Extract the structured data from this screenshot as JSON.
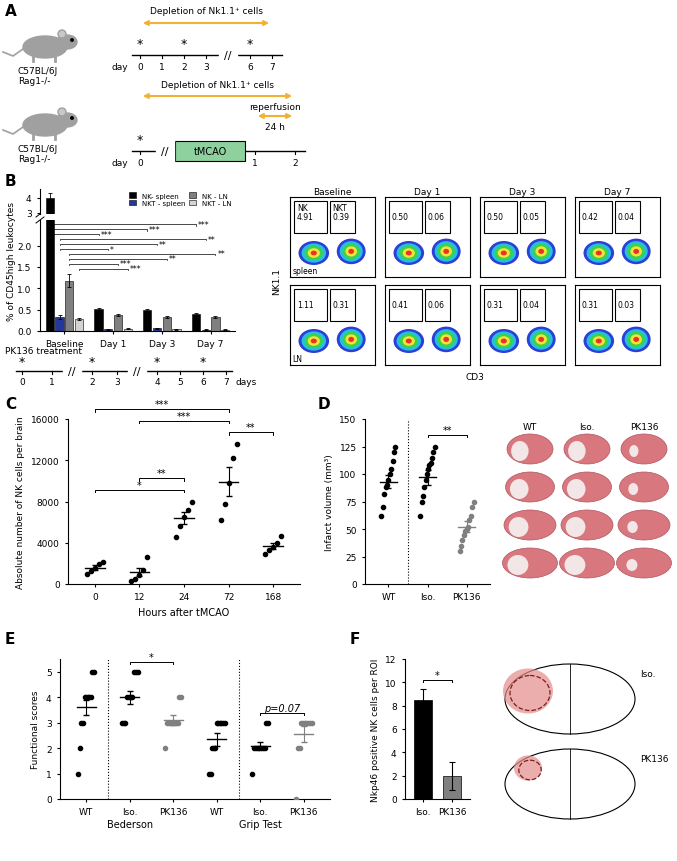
{
  "schemes": {
    "panel": "A",
    "timelines": [
      {
        "mouse": [
          "C57BL/6J",
          "Rag1-/-"
        ],
        "arrow_label": "Depletion of Nk1.1⁺ cells",
        "axis_label": "day",
        "ticks": [
          "0",
          "1",
          "2",
          "3",
          "//",
          "6",
          "7"
        ],
        "stars_at": [
          "0",
          "2",
          "6"
        ]
      },
      {
        "mouse": [
          "C57BL/6J",
          "Rag1-/-"
        ],
        "arrow_label": "Depletion of Nk1.1⁺ cells",
        "axis_label": "day",
        "ticks": [
          "0",
          "//",
          "1",
          "2"
        ],
        "stars_at": [
          "0"
        ],
        "box": "tMCAO",
        "reperfusion": "reperfusion",
        "duration": "24 h"
      }
    ]
  },
  "pk136_timeline": {
    "label": "PK136 treatment",
    "axis_label": "days",
    "ticks": [
      "0",
      "1",
      "//",
      "2",
      "3",
      "//",
      "4",
      "5",
      "6",
      "7"
    ],
    "stars_at": [
      "0",
      "2",
      "4",
      "6"
    ]
  },
  "flow_plots": {
    "x_label": "CD3",
    "y_label": "NK1.1",
    "gates": [
      "NK",
      "NKT"
    ],
    "columns": [
      "Baseline",
      "Day 1",
      "Day 3",
      "Day 7"
    ],
    "rows": [
      {
        "name": "spleen",
        "values": [
          [
            "4.91",
            "0.39"
          ],
          [
            "0.50",
            "0.06"
          ],
          [
            "0.50",
            "0.05"
          ],
          [
            "0.42",
            "0.04"
          ]
        ]
      },
      {
        "name": "LN",
        "values": [
          [
            "1.11",
            "0.31"
          ],
          [
            "0.41",
            "0.06"
          ],
          [
            "0.31",
            "0.04"
          ],
          [
            "0.31",
            "0.03"
          ]
        ]
      }
    ]
  },
  "brain_images": {
    "D": [
      "WT",
      "Iso.",
      "PK136"
    ],
    "F": [
      "Iso.",
      "PK136"
    ]
  },
  "chart_data": [
    {
      "panel": "B",
      "type": "bar",
      "ylabel": "% of CD45high leukocytes",
      "categories": [
        "Baseline",
        "Day 1",
        "Day 3",
        "Day 7"
      ],
      "series": [
        {
          "name": "NK- spleen",
          "color": "#000000",
          "values": [
            4.0,
            0.52,
            0.5,
            0.4
          ],
          "errors": [
            0.3,
            0.03,
            0.02,
            0.02
          ]
        },
        {
          "name": "NKT - spleen",
          "color": "#23389a",
          "values": [
            0.33,
            0.04,
            0.06,
            0.03
          ],
          "errors": [
            0.04,
            0.01,
            0.01,
            0.01
          ]
        },
        {
          "name": "NK - LN",
          "color": "#808080",
          "values": [
            1.18,
            0.37,
            0.32,
            0.33
          ],
          "errors": [
            0.15,
            0.03,
            0.02,
            0.02
          ]
        },
        {
          "name": "NKT - LN",
          "color": "#d3d3d3",
          "values": [
            0.28,
            0.05,
            0.04,
            0.03
          ],
          "errors": [
            0.03,
            0.01,
            0.01,
            0.01
          ]
        }
      ],
      "y_segments": [
        {
          "ylim": [
            0,
            2.6
          ],
          "yticks": [
            {
              "value": 0,
              "label": "0.0"
            },
            {
              "value": 0.5,
              "label": "0.5"
            },
            {
              "value": 1,
              "label": "1.0"
            },
            {
              "value": 1.5,
              "label": "1.5"
            },
            {
              "value": 2,
              "label": "2.0"
            }
          ]
        },
        {
          "ylim": [
            2.9,
            4.6
          ],
          "yticks": [
            3,
            4
          ]
        }
      ],
      "legend": "upper right",
      "significance": [
        {
          "series": "NKT - LN",
          "from": 0,
          "to": 1,
          "text": "***"
        },
        {
          "series": "NK - LN",
          "from": 0,
          "to": 1,
          "text": "***"
        },
        {
          "series": "NK - LN",
          "from": 0,
          "to": 2,
          "text": "**"
        },
        {
          "series": "NK - LN",
          "from": 0,
          "to": 3,
          "text": "**"
        },
        {
          "series": "NKT - spleen",
          "from": 0,
          "to": 1,
          "text": "*"
        },
        {
          "series": "NKT - spleen",
          "from": 0,
          "to": 2,
          "text": "**"
        },
        {
          "series": "NKT - spleen",
          "from": 0,
          "to": 3,
          "text": "**"
        },
        {
          "series": "NK- spleen",
          "from": 0,
          "to": 1,
          "text": "***"
        },
        {
          "series": "NK- spleen",
          "from": 0,
          "to": 2,
          "text": "***"
        },
        {
          "series": "NK- spleen",
          "from": 0,
          "to": 3,
          "text": "***"
        }
      ]
    },
    {
      "panel": "C",
      "type": "scatter",
      "ylabel": "Absolute number of NK cells per brain",
      "xlabel": "Hours after tMCAO",
      "categories": [
        "0",
        "12",
        "24",
        "72",
        "168"
      ],
      "color": "#000000",
      "points": [
        [
          1000,
          1300,
          1600,
          1900,
          2100
        ],
        [
          300,
          500,
          900,
          1400,
          2600
        ],
        [
          4600,
          5600,
          6500,
          7200,
          8000
        ],
        [
          6200,
          7800,
          9800,
          12200,
          13600
        ],
        [
          2900,
          3300,
          3600,
          4000,
          4700
        ]
      ],
      "means": [
        1600,
        1150,
        6400,
        9900,
        3700
      ],
      "errors": [
        200,
        420,
        600,
        1400,
        320
      ],
      "ylim": [
        0,
        16000
      ],
      "yticks": [
        0,
        4000,
        8000,
        12000,
        16000
      ],
      "significance": [
        {
          "from": 0,
          "to": 2,
          "text": "*"
        },
        {
          "from": 1,
          "to": 2,
          "text": "**"
        },
        {
          "from": 3,
          "to": 4,
          "text": "**"
        },
        {
          "from": 1,
          "to": 3,
          "text": "***"
        },
        {
          "from": 0,
          "to": 3,
          "text": "***"
        }
      ]
    },
    {
      "panel": "D",
      "type": "scatter",
      "ylabel": "Infarct volume (mm³)",
      "categories": [
        "WT",
        "Iso.",
        "PK136"
      ],
      "colors": [
        "#000000",
        "#000000",
        "#808080"
      ],
      "points": [
        [
          62,
          70,
          82,
          88,
          90,
          95,
          100,
          105,
          112,
          120,
          125
        ],
        [
          62,
          75,
          80,
          88,
          95,
          100,
          105,
          108,
          110,
          115,
          120,
          125
        ],
        [
          30,
          35,
          40,
          45,
          48,
          50,
          52,
          58,
          62,
          70,
          75
        ]
      ],
      "means": [
        93,
        97,
        52
      ],
      "errors": [
        6,
        7,
        5
      ],
      "ylim": [
        0,
        150
      ],
      "yticks": [
        0,
        25,
        50,
        75,
        100,
        125,
        150
      ],
      "significance": [
        {
          "from": 1,
          "to": 2,
          "text": "**"
        }
      ]
    },
    {
      "panel": "E",
      "type": "scatter",
      "ylabel": "Functional scores",
      "categories": [
        "WT",
        "Iso.",
        "PK136",
        "WT",
        "Iso.",
        "PK136"
      ],
      "groups": [
        {
          "name": "Bederson",
          "size": 3
        },
        {
          "name": "Grip Test",
          "size": 3
        }
      ],
      "colors": [
        "#000000",
        "#000000",
        "#808080",
        "#000000",
        "#000000",
        "#808080"
      ],
      "points": [
        [
          1,
          2,
          3,
          3,
          4,
          4,
          4,
          4,
          4,
          5,
          5
        ],
        [
          3,
          3,
          3,
          4,
          4,
          4,
          4,
          5,
          5,
          5
        ],
        [
          2,
          3,
          3,
          3,
          3,
          3,
          3,
          3,
          4,
          4
        ],
        [
          1,
          1,
          2,
          2,
          2,
          3,
          3,
          3,
          3,
          3,
          3
        ],
        [
          1,
          2,
          2,
          2,
          2,
          2,
          2,
          2,
          3,
          3
        ],
        [
          0,
          2,
          2,
          3,
          3,
          3,
          3,
          3,
          3,
          3
        ]
      ],
      "means": [
        3.6,
        4.0,
        3.1,
        2.35,
        2.1,
        2.55
      ],
      "errors": [
        0.3,
        0.25,
        0.2,
        0.25,
        0.15,
        0.3
      ],
      "ylim": [
        0,
        5.5
      ],
      "yticks": [
        0,
        1,
        2,
        3,
        4,
        5
      ],
      "significance": [
        {
          "from": 1,
          "to": 2,
          "text": "*"
        },
        {
          "from": 4,
          "to": 5,
          "text": "p=0.07"
        }
      ]
    },
    {
      "panel": "F",
      "type": "bar",
      "ylabel": "Nkp46 positive NK cells per ROI",
      "categories": [
        "Iso.",
        "PK136"
      ],
      "values": [
        8.5,
        2.0
      ],
      "errors": [
        0.9,
        1.2
      ],
      "colors": [
        "#000000",
        "#808080"
      ],
      "ylim": [
        0,
        12
      ],
      "yticks": [
        0,
        2,
        4,
        6,
        8,
        10,
        12
      ],
      "significance": [
        {
          "from": 0,
          "to": 1,
          "text": "*"
        }
      ]
    }
  ]
}
